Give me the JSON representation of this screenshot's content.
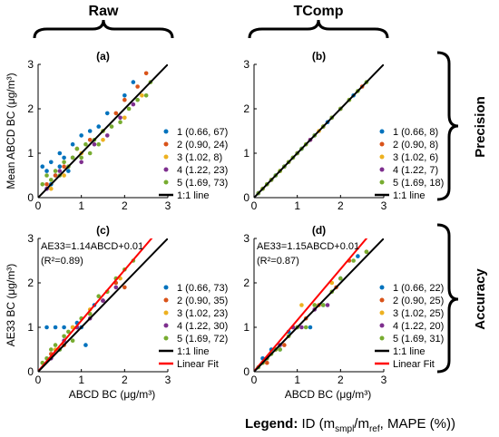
{
  "column_headers": [
    "Raw",
    "TComp"
  ],
  "row_headers": [
    "Precision",
    "Accuracy"
  ],
  "legend_caption": {
    "bold": "Legend:",
    "rest": " ID (m",
    "sub1": "smpl",
    "mid": "/m",
    "sub2": "ref",
    "end": ", MAPE (%))"
  },
  "colors": {
    "series": [
      "#0072BD",
      "#D95319",
      "#EDB120",
      "#7E2F8E",
      "#77AC30"
    ],
    "one_to_one": "#000000",
    "linear_fit": "#FF0000"
  },
  "chart_data": [
    {
      "panel": "(a)",
      "type": "scatter",
      "xlabel": "",
      "ylabel": "Mean ABCD BC (μg/m³)",
      "xlim": [
        0,
        3
      ],
      "ylim": [
        0,
        3
      ],
      "xticks": [
        0,
        1,
        2,
        3
      ],
      "yticks": [
        0,
        1,
        2,
        3
      ],
      "legend": [
        "1 (0.66, 67)",
        "2 (0.90, 24)",
        "3 (1.02, 8)",
        "4 (1.22, 23)",
        "5 (1.69, 73)",
        "1:1 line"
      ],
      "series": [
        {
          "x": [
            0.1,
            0.2,
            0.3,
            0.4,
            0.5,
            0.6,
            0.7,
            0.2,
            0.3,
            0.5,
            0.8,
            1.0,
            1.2,
            1.4,
            1.6,
            2.0,
            2.2
          ],
          "y": [
            0.7,
            0.6,
            0.8,
            0.5,
            0.7,
            0.9,
            0.6,
            0.2,
            0.3,
            1.0,
            1.2,
            1.4,
            1.5,
            1.6,
            1.9,
            2.3,
            2.6
          ]
        },
        {
          "x": [
            0.2,
            0.4,
            0.6,
            0.9,
            1.2,
            1.5,
            1.8,
            2.0,
            2.3,
            2.5
          ],
          "y": [
            0.3,
            0.5,
            0.7,
            1.1,
            1.3,
            1.5,
            1.9,
            2.2,
            2.5,
            2.8
          ]
        },
        {
          "x": [
            0.3,
            0.6,
            1.0,
            1.5,
            2.0,
            2.4
          ],
          "y": [
            0.2,
            0.5,
            1.0,
            1.3,
            1.8,
            2.3
          ]
        },
        {
          "x": [
            0.2,
            0.5,
            0.8,
            1.0,
            1.3,
            1.6,
            1.9,
            2.2
          ],
          "y": [
            0.2,
            0.6,
            0.9,
            0.8,
            1.2,
            1.4,
            1.8,
            2.1
          ]
        },
        {
          "x": [
            0.1,
            0.2,
            0.3,
            0.4,
            0.5,
            0.6,
            0.7,
            0.8,
            0.9,
            1.0,
            1.1,
            1.2,
            1.3,
            1.4,
            1.5,
            1.7,
            1.9,
            2.1,
            2.3,
            2.5,
            2.6
          ],
          "y": [
            0.3,
            0.5,
            0.4,
            0.6,
            0.5,
            0.8,
            0.7,
            0.9,
            1.1,
            0.9,
            1.2,
            1.0,
            1.3,
            1.2,
            1.5,
            1.6,
            1.7,
            2.0,
            2.2,
            2.3,
            2.6
          ]
        }
      ]
    },
    {
      "panel": "(b)",
      "type": "scatter",
      "xlabel": "",
      "ylabel": "",
      "xlim": [
        0,
        3
      ],
      "ylim": [
        0,
        3
      ],
      "xticks": [
        0,
        1,
        2,
        3
      ],
      "yticks": [
        0,
        1,
        2,
        3
      ],
      "legend": [
        "1 (0.66, 8)",
        "2 (0.90, 8)",
        "3 (1.02, 6)",
        "4 (1.22, 7)",
        "5 (1.69, 18)",
        "1:1 line"
      ],
      "series": [
        {
          "x": [
            0.1,
            0.3,
            0.5,
            0.7,
            0.9,
            1.1,
            1.4,
            1.7,
            2.0,
            2.3
          ],
          "y": [
            0.1,
            0.3,
            0.5,
            0.7,
            0.9,
            1.1,
            1.4,
            1.7,
            2.0,
            2.3
          ]
        },
        {
          "x": [
            0.2,
            0.4,
            0.6,
            0.8,
            1.0,
            1.3,
            1.6,
            2.0,
            2.5
          ],
          "y": [
            0.2,
            0.4,
            0.6,
            0.8,
            1.0,
            1.3,
            1.6,
            2.0,
            2.5
          ]
        },
        {
          "x": [
            0.3,
            0.6,
            0.9,
            1.2,
            1.5,
            2.2
          ],
          "y": [
            0.3,
            0.6,
            0.9,
            1.2,
            1.5,
            2.2
          ]
        },
        {
          "x": [
            0.1,
            0.4,
            0.7,
            1.0,
            1.3,
            1.8
          ],
          "y": [
            0.1,
            0.4,
            0.7,
            1.0,
            1.3,
            1.8
          ]
        },
        {
          "x": [
            0.1,
            0.2,
            0.3,
            0.4,
            0.5,
            0.6,
            0.7,
            0.8,
            0.9,
            1.0,
            1.1,
            1.2,
            1.4,
            1.6,
            1.8,
            2.0,
            2.2,
            2.4,
            2.6
          ],
          "y": [
            0.1,
            0.2,
            0.3,
            0.4,
            0.5,
            0.6,
            0.7,
            0.8,
            0.9,
            1.0,
            1.1,
            1.2,
            1.4,
            1.6,
            1.8,
            2.0,
            2.2,
            2.4,
            2.6
          ]
        }
      ]
    },
    {
      "panel": "(c)",
      "type": "scatter",
      "xlabel": "ABCD BC (μg/m³)",
      "ylabel": "AE33 BC (μg/m³)",
      "xlim": [
        0,
        3
      ],
      "ylim": [
        0,
        3
      ],
      "xticks": [
        0,
        1,
        2,
        3
      ],
      "yticks": [
        0,
        1,
        2,
        3
      ],
      "annotation": [
        "AE33=1.14ABCD+0.01",
        "(R²=0.89)"
      ],
      "fit": {
        "slope": 1.14,
        "intercept": 0.01
      },
      "legend": [
        "1 (0.66, 73)",
        "2 (0.90, 35)",
        "3 (1.02, 23)",
        "4 (1.22, 30)",
        "5 (1.69, 72)",
        "1:1 line",
        "Linear Fit"
      ],
      "series": [
        {
          "x": [
            0.2,
            0.4,
            0.6,
            0.8,
            1.0,
            1.1,
            0.5,
            0.9,
            1.3,
            1.5
          ],
          "y": [
            1.0,
            1.0,
            1.0,
            1.0,
            1.0,
            0.6,
            0.5,
            1.1,
            1.5,
            1.6
          ]
        },
        {
          "x": [
            0.3,
            0.6,
            0.9,
            1.2,
            1.5,
            1.8,
            2.0
          ],
          "y": [
            0.4,
            0.6,
            1.0,
            1.3,
            1.6,
            2.0,
            1.9
          ]
        },
        {
          "x": [
            0.4,
            0.8,
            1.2,
            1.6,
            1.9
          ],
          "y": [
            0.5,
            1.0,
            1.4,
            1.8,
            2.1
          ]
        },
        {
          "x": [
            0.3,
            0.6,
            0.9,
            1.2,
            1.5,
            1.8
          ],
          "y": [
            0.3,
            0.7,
            1.0,
            1.2,
            1.6,
            1.9
          ]
        },
        {
          "x": [
            0.1,
            0.2,
            0.3,
            0.4,
            0.5,
            0.6,
            0.7,
            0.8,
            1.0,
            1.2,
            1.4,
            1.6,
            1.8,
            2.0,
            2.2
          ],
          "y": [
            0.2,
            0.3,
            0.5,
            0.6,
            0.5,
            0.8,
            0.9,
            0.7,
            1.2,
            1.3,
            1.7,
            1.8,
            2.1,
            2.3,
            2.5
          ]
        }
      ]
    },
    {
      "panel": "(d)",
      "type": "scatter",
      "xlabel": "ABCD BC (μg/m³)",
      "ylabel": "",
      "xlim": [
        0,
        3
      ],
      "ylim": [
        0,
        3
      ],
      "xticks": [
        0,
        1,
        2,
        3
      ],
      "yticks": [
        0,
        1,
        2,
        3
      ],
      "annotation": [
        "AE33=1.15ABCD+0.01",
        "(R²=0.87)"
      ],
      "fit": {
        "slope": 1.15,
        "intercept": 0.01
      },
      "legend": [
        "1 (0.66, 22)",
        "2 (0.90, 25)",
        "3 (1.02, 25)",
        "4 (1.22, 20)",
        "5 (1.69, 31)",
        "1:1 line",
        "Linear Fit"
      ],
      "series": [
        {
          "x": [
            0.2,
            0.4,
            0.6,
            0.8,
            1.0,
            1.3,
            1.6,
            2.0,
            2.4
          ],
          "y": [
            0.3,
            0.5,
            0.5,
            0.9,
            1.0,
            1.0,
            1.5,
            2.1,
            2.6
          ]
        },
        {
          "x": [
            0.3,
            0.5,
            0.7,
            0.9,
            1.2,
            1.5,
            1.9,
            2.2,
            2.6
          ],
          "y": [
            0.2,
            0.5,
            0.6,
            1.0,
            1.2,
            1.5,
            1.9,
            2.5,
            2.7
          ]
        },
        {
          "x": [
            0.2,
            0.5,
            0.8,
            1.1,
            1.4,
            1.8
          ],
          "y": [
            0.2,
            0.5,
            0.8,
            1.5,
            1.5,
            2.0
          ]
        },
        {
          "x": [
            0.3,
            0.6,
            0.9,
            1.1,
            1.4,
            1.7
          ],
          "y": [
            0.3,
            0.6,
            1.0,
            1.0,
            1.4,
            1.5
          ]
        },
        {
          "x": [
            0.1,
            0.2,
            0.3,
            0.4,
            0.5,
            0.6,
            0.8,
            1.0,
            1.2,
            1.4,
            1.6,
            1.8,
            2.0,
            2.3,
            2.6
          ],
          "y": [
            0.1,
            0.2,
            0.3,
            0.4,
            0.5,
            0.5,
            0.8,
            1.0,
            1.0,
            1.5,
            1.5,
            1.8,
            2.1,
            2.5,
            2.7
          ]
        }
      ]
    }
  ]
}
